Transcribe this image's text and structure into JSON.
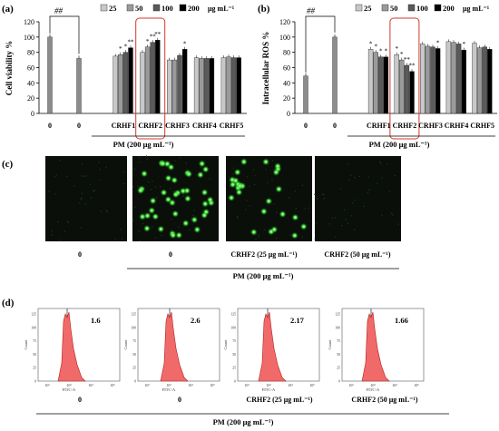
{
  "legend": {
    "entries": [
      "25",
      "50",
      "100",
      "200"
    ],
    "unit": "μg mL⁻¹",
    "colors": [
      "#c8c8c8",
      "#9a9a9a",
      "#5a5a5a",
      "#000000"
    ]
  },
  "panel_a": {
    "label": "(a)",
    "ylabel": "Cell viability %",
    "sig": "##",
    "x_labels": [
      "0",
      "0",
      "CRHF1",
      "CRHF2",
      "CRHF3",
      "CRHF4",
      "CRHF5"
    ],
    "group_label": "PM (200 μg mL⁻¹)"
  },
  "panel_b": {
    "label": "(b)",
    "ylabel": "Intracellular ROS %",
    "sig": "##",
    "x_labels": [
      "0",
      "0",
      "CRHF1",
      "CRHF2",
      "CRHF3",
      "CRHF4",
      "CRHF5"
    ],
    "group_label": "PM (200 μg mL⁻¹)"
  },
  "panel_c": {
    "label": "(c)",
    "captions": [
      "0",
      "0",
      "CRHF2 (25 μg mL⁻¹)",
      "CRHF2 (50 μg mL⁻¹)"
    ],
    "group_label": "PM (200 μg mL⁻¹)"
  },
  "panel_d": {
    "label": "(d)",
    "values": [
      "1.6",
      "2.6",
      "2.17",
      "1.66"
    ],
    "ylabel": "Count",
    "xlabel": "FITC-A",
    "captions": [
      "0",
      "0",
      "CRHF2 (25 μg mL⁻¹)",
      "CRHF2 (50 μg mL⁻¹)"
    ],
    "group_label": "PM (200 μg mL⁻¹)"
  },
  "chart_data": [
    {
      "type": "bar",
      "panel": "a",
      "ylabel": "Cell viability %",
      "ylim": [
        0,
        120
      ],
      "yticks": [
        0,
        20,
        40,
        60,
        80,
        100,
        120
      ],
      "categories": [
        "0",
        "0",
        "CRHF1",
        "CRHF2",
        "CRHF3",
        "CRHF4",
        "CRHF5"
      ],
      "control": 100,
      "pm_only": 72,
      "series": [
        {
          "name": "25",
          "values": [
            null,
            null,
            75,
            80,
            70,
            73,
            73
          ]
        },
        {
          "name": "50",
          "values": [
            null,
            null,
            77,
            87,
            70,
            72,
            74
          ]
        },
        {
          "name": "100",
          "values": [
            null,
            null,
            80,
            93,
            76,
            72,
            73
          ]
        },
        {
          "name": "200",
          "values": [
            null,
            null,
            86,
            96,
            84,
            72,
            73
          ]
        }
      ],
      "stars": [
        {
          "group": 2,
          "series": 1,
          "text": "*"
        },
        {
          "group": 2,
          "series": 2,
          "text": "*"
        },
        {
          "group": 2,
          "series": 3,
          "text": "**"
        },
        {
          "group": 3,
          "series": 1,
          "text": "*"
        },
        {
          "group": 3,
          "series": 2,
          "text": "**"
        },
        {
          "group": 3,
          "series": 3,
          "text": "**"
        },
        {
          "group": 4,
          "series": 3,
          "text": "*"
        }
      ],
      "highlight_group": 3
    },
    {
      "type": "bar",
      "panel": "b",
      "ylabel": "Intracellular ROS %",
      "ylim": [
        0,
        120
      ],
      "yticks": [
        0,
        20,
        40,
        60,
        80,
        100,
        120
      ],
      "categories": [
        "0",
        "0",
        "CRHF1",
        "CRHF2",
        "CRHF3",
        "CRHF4",
        "CRHF5"
      ],
      "control": 49,
      "pm_only": 100,
      "series": [
        {
          "name": "25",
          "values": [
            null,
            null,
            84,
            77,
            91,
            94,
            92
          ]
        },
        {
          "name": "50",
          "values": [
            null,
            null,
            80,
            70,
            88,
            93,
            86
          ]
        },
        {
          "name": "100",
          "values": [
            null,
            null,
            74,
            63,
            87,
            91,
            87
          ]
        },
        {
          "name": "200",
          "values": [
            null,
            null,
            74,
            55,
            85,
            83,
            84
          ]
        }
      ],
      "stars": [
        {
          "group": 2,
          "series": 0,
          "text": "*"
        },
        {
          "group": 2,
          "series": 1,
          "text": "*"
        },
        {
          "group": 2,
          "series": 2,
          "text": "*"
        },
        {
          "group": 2,
          "series": 3,
          "text": "*"
        },
        {
          "group": 3,
          "series": 0,
          "text": "*"
        },
        {
          "group": 3,
          "series": 1,
          "text": "*"
        },
        {
          "group": 3,
          "series": 2,
          "text": "**"
        },
        {
          "group": 3,
          "series": 3,
          "text": "**"
        },
        {
          "group": 4,
          "series": 3,
          "text": "*"
        },
        {
          "group": 5,
          "series": 3,
          "text": "*"
        }
      ],
      "highlight_group": 3
    }
  ]
}
